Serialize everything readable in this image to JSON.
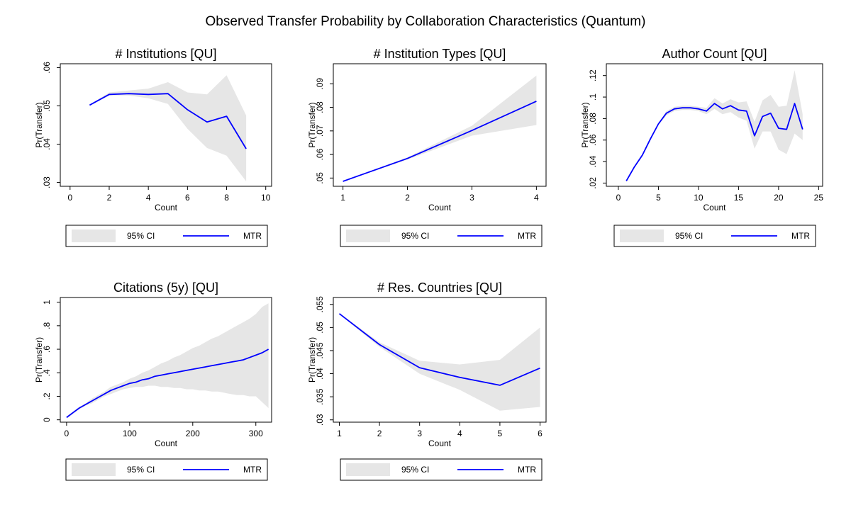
{
  "figure": {
    "title": "Observed Transfer Probability by Collaboration Characteristics (Quantum)"
  },
  "colors": {
    "line": "#0000ff",
    "ci_fill": "#e6e6e6",
    "frame": "#000000"
  },
  "chart_data": [
    {
      "type": "line",
      "title": "# Institutions [QU]",
      "xlabel": "Count",
      "ylabel": "Pr(Transfer)",
      "xlim": [
        -0.5,
        10.3
      ],
      "ylim": [
        0.029,
        0.061
      ],
      "xticks": [
        0,
        2,
        4,
        6,
        8,
        10
      ],
      "xtick_labels": [
        "0",
        "2",
        "4",
        "6",
        "8",
        "10"
      ],
      "yticks": [
        0.03,
        0.04,
        0.05,
        0.06
      ],
      "ytick_labels": [
        ".03",
        ".04",
        ".05",
        ".06"
      ],
      "legend": {
        "placement": "below",
        "entries": [
          "95% CI",
          "MTR"
        ]
      },
      "series": [
        {
          "name": "MTR",
          "x": [
            1,
            2,
            3,
            4,
            5,
            6,
            7,
            8,
            9
          ],
          "y": [
            0.0502,
            0.053,
            0.0532,
            0.053,
            0.0532,
            0.049,
            0.0458,
            0.0473,
            0.0388
          ]
        },
        {
          "name": "95% CI",
          "x": [
            1,
            2,
            3,
            4,
            5,
            6,
            7,
            8,
            9
          ],
          "lower": [
            0.0501,
            0.0527,
            0.0527,
            0.052,
            0.0505,
            0.044,
            0.039,
            0.037,
            0.0303
          ],
          "upper": [
            0.0503,
            0.0535,
            0.054,
            0.0545,
            0.0562,
            0.0535,
            0.053,
            0.058,
            0.0475
          ]
        }
      ]
    },
    {
      "type": "line",
      "title": "# Institution Types [QU]",
      "xlabel": "Count",
      "ylabel": "Pr(Transfer)",
      "xlim": [
        0.85,
        4.15
      ],
      "ylim": [
        0.0465,
        0.0985
      ],
      "xticks": [
        1,
        2,
        3,
        4
      ],
      "xtick_labels": [
        "1",
        "2",
        "3",
        "4"
      ],
      "yticks": [
        0.05,
        0.06,
        0.07,
        0.08,
        0.09
      ],
      "ytick_labels": [
        ".05",
        ".06",
        ".07",
        ".08",
        ".09"
      ],
      "legend": {
        "placement": "below",
        "entries": [
          "95% CI",
          "MTR"
        ]
      },
      "series": [
        {
          "name": "MTR",
          "x": [
            1,
            2,
            3,
            4
          ],
          "y": [
            0.0486,
            0.0583,
            0.0702,
            0.0826
          ]
        },
        {
          "name": "95% CI",
          "x": [
            1,
            2,
            3,
            4
          ],
          "lower": [
            0.0485,
            0.0578,
            0.068,
            0.0725
          ],
          "upper": [
            0.0487,
            0.0588,
            0.0722,
            0.0935
          ]
        }
      ]
    },
    {
      "type": "line",
      "title": "Author Count [QU]",
      "xlabel": "Count",
      "ylabel": "Pr(Transfer)",
      "xlim": [
        -1.5,
        25.5
      ],
      "ylim": [
        0.017,
        0.131
      ],
      "xticks": [
        0,
        5,
        10,
        15,
        20,
        25
      ],
      "xtick_labels": [
        "0",
        "5",
        "10",
        "15",
        "20",
        "25"
      ],
      "yticks": [
        0.02,
        0.04,
        0.06,
        0.08,
        0.1,
        0.12
      ],
      "ytick_labels": [
        ".02",
        ".04",
        ".06",
        ".08",
        ".1",
        ".12"
      ],
      "legend": {
        "placement": "below",
        "entries": [
          "95% CI",
          "MTR"
        ]
      },
      "series": [
        {
          "name": "MTR",
          "x": [
            1,
            2,
            3,
            4,
            5,
            6,
            7,
            8,
            9,
            10,
            11,
            12,
            13,
            14,
            15,
            16,
            17,
            18,
            19,
            20,
            21,
            22,
            23
          ],
          "y": [
            0.022,
            0.035,
            0.046,
            0.061,
            0.075,
            0.085,
            0.089,
            0.09,
            0.09,
            0.089,
            0.087,
            0.094,
            0.089,
            0.092,
            0.088,
            0.087,
            0.064,
            0.082,
            0.085,
            0.071,
            0.07,
            0.094,
            0.07
          ]
        },
        {
          "name": "95% CI",
          "x": [
            1,
            2,
            3,
            4,
            5,
            6,
            7,
            8,
            9,
            10,
            11,
            12,
            13,
            14,
            15,
            16,
            17,
            18,
            19,
            20,
            21,
            22,
            23
          ],
          "lower": [
            0.021,
            0.034,
            0.045,
            0.06,
            0.074,
            0.083,
            0.087,
            0.088,
            0.088,
            0.087,
            0.084,
            0.089,
            0.084,
            0.086,
            0.081,
            0.078,
            0.052,
            0.068,
            0.068,
            0.051,
            0.047,
            0.066,
            0.06
          ],
          "upper": [
            0.023,
            0.036,
            0.047,
            0.062,
            0.076,
            0.087,
            0.091,
            0.092,
            0.092,
            0.091,
            0.09,
            0.099,
            0.094,
            0.098,
            0.095,
            0.096,
            0.077,
            0.097,
            0.102,
            0.091,
            0.092,
            0.125,
            0.084
          ]
        }
      ]
    },
    {
      "type": "line",
      "title": "Citations (5y) [QU]",
      "xlabel": "Count",
      "ylabel": "Pr(Transfer)",
      "xlim": [
        -10,
        325
      ],
      "ylim": [
        -0.02,
        1.04
      ],
      "xticks": [
        0,
        100,
        200,
        300
      ],
      "xtick_labels": [
        "0",
        "100",
        "200",
        "300"
      ],
      "yticks": [
        0,
        0.2,
        0.4,
        0.6,
        0.8,
        1.0
      ],
      "ytick_labels": [
        "0",
        ".2",
        ".4",
        ".6",
        ".8",
        "1"
      ],
      "legend": {
        "placement": "below",
        "entries": [
          "95% CI",
          "MTR"
        ]
      },
      "series": [
        {
          "name": "MTR",
          "x": [
            0,
            10,
            20,
            30,
            40,
            50,
            60,
            70,
            80,
            90,
            100,
            110,
            120,
            130,
            140,
            150,
            160,
            170,
            180,
            190,
            200,
            210,
            220,
            230,
            240,
            250,
            260,
            270,
            280,
            290,
            300,
            310,
            320
          ],
          "y": [
            0.02,
            0.06,
            0.1,
            0.13,
            0.16,
            0.19,
            0.22,
            0.25,
            0.27,
            0.29,
            0.31,
            0.32,
            0.34,
            0.35,
            0.37,
            0.38,
            0.39,
            0.4,
            0.41,
            0.42,
            0.43,
            0.44,
            0.45,
            0.46,
            0.47,
            0.48,
            0.49,
            0.5,
            0.51,
            0.53,
            0.55,
            0.57,
            0.6
          ]
        },
        {
          "name": "95% CI",
          "x": [
            0,
            10,
            20,
            30,
            40,
            50,
            60,
            70,
            80,
            90,
            100,
            110,
            120,
            130,
            140,
            150,
            160,
            170,
            180,
            190,
            200,
            210,
            220,
            230,
            240,
            250,
            260,
            270,
            280,
            290,
            300,
            310,
            320
          ],
          "lower": [
            0.01,
            0.05,
            0.09,
            0.12,
            0.14,
            0.17,
            0.2,
            0.22,
            0.24,
            0.26,
            0.27,
            0.28,
            0.28,
            0.29,
            0.29,
            0.28,
            0.28,
            0.27,
            0.27,
            0.26,
            0.26,
            0.25,
            0.25,
            0.24,
            0.24,
            0.23,
            0.22,
            0.21,
            0.21,
            0.2,
            0.2,
            0.15,
            0.1
          ],
          "upper": [
            0.03,
            0.07,
            0.11,
            0.14,
            0.18,
            0.21,
            0.24,
            0.28,
            0.3,
            0.32,
            0.35,
            0.37,
            0.4,
            0.42,
            0.45,
            0.48,
            0.5,
            0.53,
            0.55,
            0.58,
            0.61,
            0.63,
            0.66,
            0.69,
            0.71,
            0.74,
            0.77,
            0.8,
            0.83,
            0.86,
            0.9,
            0.96,
            0.99
          ]
        }
      ]
    },
    {
      "type": "line",
      "title": "# Res. Countries [QU]",
      "xlabel": "Count",
      "ylabel": "Pr(Transfer)",
      "xlim": [
        0.85,
        6.15
      ],
      "ylim": [
        0.0295,
        0.0565
      ],
      "xticks": [
        1,
        2,
        3,
        4,
        5,
        6
      ],
      "xtick_labels": [
        "1",
        "2",
        "3",
        "4",
        "5",
        "6"
      ],
      "yticks": [
        0.03,
        0.035,
        0.04,
        0.045,
        0.05,
        0.055
      ],
      "ytick_labels": [
        ".03",
        ".035",
        ".04",
        ".045",
        ".05",
        ".055"
      ],
      "legend": {
        "placement": "below",
        "entries": [
          "95% CI",
          "MTR"
        ]
      },
      "series": [
        {
          "name": "MTR",
          "x": [
            1,
            2,
            3,
            4,
            5,
            6
          ],
          "y": [
            0.053,
            0.0463,
            0.0413,
            0.0392,
            0.0375,
            0.0412
          ]
        },
        {
          "name": "95% CI",
          "x": [
            1,
            2,
            3,
            4,
            5,
            6
          ],
          "lower": [
            0.0529,
            0.0458,
            0.04,
            0.0365,
            0.032,
            0.0328
          ],
          "upper": [
            0.0531,
            0.0468,
            0.0428,
            0.042,
            0.043,
            0.05
          ]
        }
      ]
    }
  ]
}
